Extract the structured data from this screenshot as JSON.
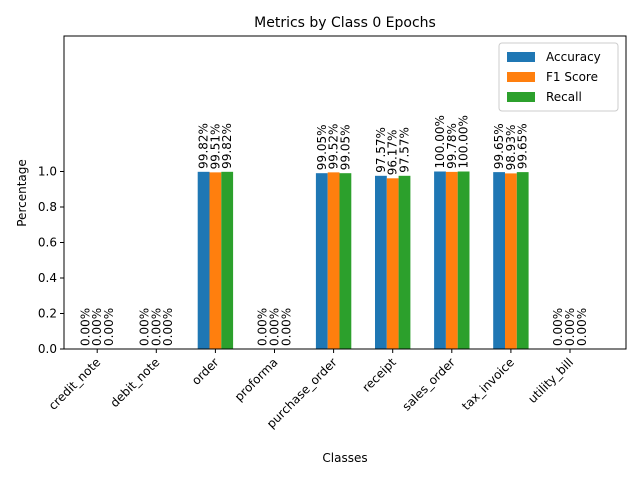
{
  "chart_data": {
    "type": "bar",
    "title": "Metrics by Class 0 Epochs",
    "xlabel": "Classes",
    "ylabel": "Percentage",
    "ylim": [
      0,
      1.0
    ],
    "yticks": [
      "0.0",
      "0.2",
      "0.4",
      "0.6",
      "0.8",
      "1.0"
    ],
    "categories": [
      "credit_note",
      "debit_note",
      "order",
      "proforma",
      "purchase_order",
      "receipt",
      "sales_order",
      "tax_invoice",
      "utility_bill"
    ],
    "legend_position": "top-right",
    "grid": false,
    "series": [
      {
        "name": "Accuracy",
        "color": "#1f77b4",
        "values": [
          0.0,
          0.0,
          0.9982,
          0.0,
          0.9905,
          0.9757,
          1.0,
          0.9965,
          0.0
        ],
        "labels": [
          "0.00%",
          "0.00%",
          "99.82%",
          "0.00%",
          "99.05%",
          "97.57%",
          "100.00%",
          "99.65%",
          "0.00%"
        ]
      },
      {
        "name": "F1 Score",
        "color": "#ff7f0e",
        "values": [
          0.0,
          0.0,
          0.9951,
          0.0,
          0.9952,
          0.9617,
          0.9978,
          0.9893,
          0.0
        ],
        "labels": [
          "0.00%",
          "0.00%",
          "99.51%",
          "0.00%",
          "99.52%",
          "96.17%",
          "99.78%",
          "98.93%",
          "0.00%"
        ]
      },
      {
        "name": "Recall",
        "color": "#2ca02c",
        "values": [
          0.0,
          0.0,
          0.9982,
          0.0,
          0.9905,
          0.9757,
          1.0,
          0.9965,
          0.0
        ],
        "labels": [
          "0.00%",
          "0.00%",
          "99.82%",
          "0.00%",
          "99.05%",
          "97.57%",
          "100.00%",
          "99.65%",
          "0.00%"
        ]
      }
    ]
  }
}
